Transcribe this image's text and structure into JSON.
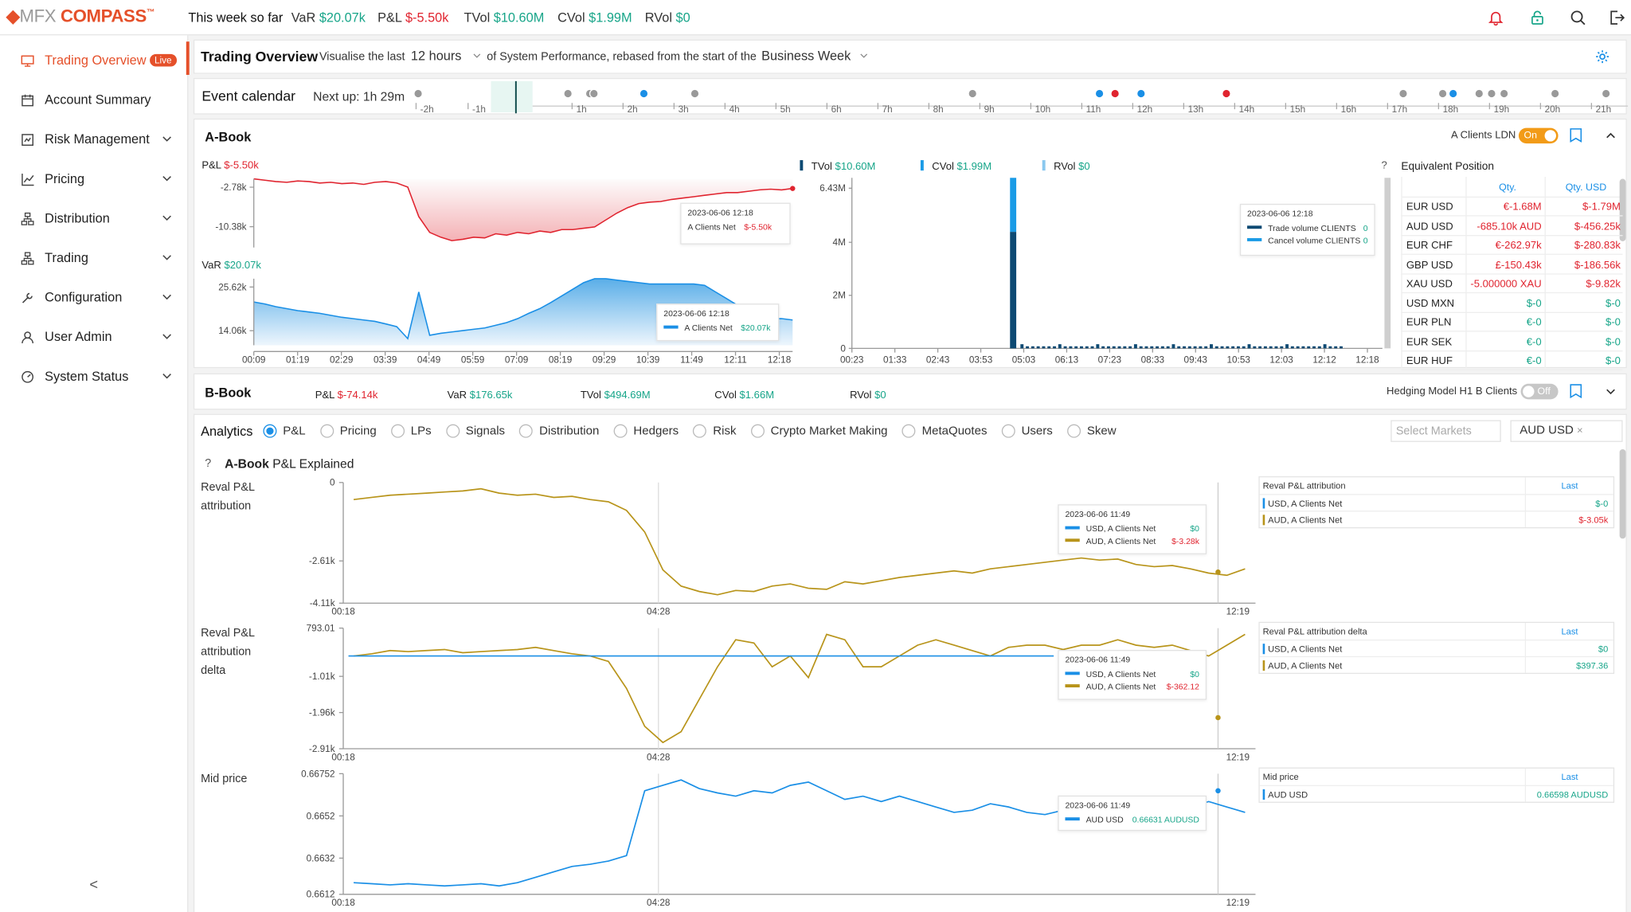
{
  "topbar": {
    "logo_mark": "◆",
    "logo_mfx": "MFX",
    "logo_compass": "COMPASS",
    "logo_tm": "™",
    "week_label": "This week so far",
    "metrics": [
      {
        "key": "VaR",
        "value": "$20.07k",
        "color": "#17a589"
      },
      {
        "key": "P&L",
        "value": "$-5.50k",
        "color": "#e0242f"
      },
      {
        "key": "TVol",
        "value": "$10.60M",
        "color": "#17a589"
      },
      {
        "key": "CVol",
        "value": "$1.99M",
        "color": "#17a589"
      },
      {
        "key": "RVol",
        "value": "$0",
        "color": "#17a589"
      }
    ],
    "icons": [
      "bell-icon",
      "lock-icon",
      "search-icon",
      "logout-icon"
    ]
  },
  "sidebar": {
    "items": [
      {
        "label": "Trading Overview",
        "icon": "monitor-icon",
        "badge": "Live",
        "active": true
      },
      {
        "label": "Account Summary",
        "icon": "calendar-icon"
      },
      {
        "label": "Risk Management",
        "icon": "shield-icon",
        "chevron": true
      },
      {
        "label": "Pricing",
        "icon": "chart-icon",
        "chevron": true
      },
      {
        "label": "Distribution",
        "icon": "network-icon",
        "chevron": true
      },
      {
        "label": "Trading",
        "icon": "network-icon",
        "chevron": true
      },
      {
        "label": "Configuration",
        "icon": "wrench-icon",
        "chevron": true
      },
      {
        "label": "User Admin",
        "icon": "user-icon",
        "chevron": true
      },
      {
        "label": "System Status",
        "icon": "gauge-icon",
        "chevron": true
      }
    ],
    "collapse": "<"
  },
  "overview": {
    "title": "Trading Overview",
    "visualise": "Visualise the last",
    "range": "12 hours",
    "of_text": "of System Performance, rebased from the start of the",
    "rebase": "Business Week"
  },
  "calendar": {
    "title": "Event calendar",
    "next_up": "Next up: 1h 29m",
    "ticks": [
      "-2h",
      "-1h",
      "1h",
      "2h",
      "3h",
      "4h",
      "5h",
      "6h",
      "7h",
      "8h",
      "9h",
      "10h",
      "11h",
      "12h",
      "13h",
      "14h",
      "15h",
      "16h",
      "17h",
      "18h",
      "19h",
      "20h",
      "21h"
    ]
  },
  "abook": {
    "title": "A-Book",
    "account": "A Clients LDN",
    "toggle": "On",
    "pnl_label": "P&L",
    "pnl_value": "$-5.50k",
    "pnl_ticks": [
      "-2.78k",
      "-10.38k"
    ],
    "pnl_tip_date": "2023-06-06 12:18",
    "pnl_tip_series": "A Clients Net",
    "pnl_tip_value": "$-5.50k",
    "var_label": "VaR",
    "var_value": "$20.07k",
    "var_ticks": [
      "25.62k",
      "14.06k"
    ],
    "var_tip_date": "2023-06-06 12:18",
    "var_tip_series": "A Clients Net",
    "var_tip_value": "$20.07k",
    "time_ticks": [
      "00:09",
      "01:19",
      "02:29",
      "03:39",
      "04:49",
      "05:59",
      "07:09",
      "08:19",
      "09:29",
      "10:39",
      "11:49",
      "12:11",
      "12:18"
    ],
    "vol_legend": [
      {
        "label": "TVol",
        "value": "$10.60M",
        "color": "#0d4a73"
      },
      {
        "label": "CVol",
        "value": "$1.99M",
        "color": "#1a9be6"
      },
      {
        "label": "RVol",
        "value": "$0",
        "color": "#8ac8ef"
      }
    ],
    "vol_ticks": [
      "6.43M",
      "4M",
      "2M",
      "0"
    ],
    "vol_time_ticks": [
      "00:23",
      "01:33",
      "02:43",
      "03:53",
      "05:03",
      "06:13",
      "07:23",
      "08:33",
      "09:43",
      "10:53",
      "12:03",
      "12:12",
      "12:18"
    ],
    "vol_tip_date": "2023-06-06 12:18",
    "vol_tip_rows": [
      {
        "label": "Trade volume CLIENTS",
        "value": "0",
        "color": "#0d4a73"
      },
      {
        "label": "Cancel volume CLIENTS",
        "value": "0",
        "color": "#1a9be6"
      }
    ],
    "equiv": {
      "help": "?",
      "title": "Equivalent Position",
      "col_qty": "Qty.",
      "col_usd": "Qty. USD",
      "rows": [
        {
          "sym": "EUR USD",
          "qty": "€-1.68M",
          "usd": "$-1.79M",
          "neg": true
        },
        {
          "sym": "AUD USD",
          "qty": "-685.10k AUD",
          "usd": "$-456.25k",
          "neg": true
        },
        {
          "sym": "EUR CHF",
          "qty": "€-262.97k",
          "usd": "$-280.83k",
          "neg": true
        },
        {
          "sym": "GBP USD",
          "qty": "£-150.43k",
          "usd": "$-186.56k",
          "neg": true
        },
        {
          "sym": "XAU USD",
          "qty": "-5.000000 XAU",
          "usd": "$-9.82k",
          "neg": true
        },
        {
          "sym": "USD MXN",
          "qty": "$-0",
          "usd": "$-0",
          "neg": false
        },
        {
          "sym": "EUR PLN",
          "qty": "€-0",
          "usd": "$-0",
          "neg": false
        },
        {
          "sym": "EUR SEK",
          "qty": "€-0",
          "usd": "$-0",
          "neg": false
        },
        {
          "sym": "EUR HUF",
          "qty": "€-0",
          "usd": "$-0",
          "neg": false
        }
      ]
    }
  },
  "bbook": {
    "title": "B-Book",
    "metrics": [
      {
        "key": "P&L",
        "value": "$-74.14k",
        "color": "#e0242f"
      },
      {
        "key": "VaR",
        "value": "$176.65k",
        "color": "#17a589"
      },
      {
        "key": "TVol",
        "value": "$494.69M",
        "color": "#17a589"
      },
      {
        "key": "CVol",
        "value": "$1.66M",
        "color": "#17a589"
      },
      {
        "key": "RVol",
        "value": "$0",
        "color": "#17a589"
      }
    ],
    "hedge": "Hedging Model H1 B Clients",
    "toggle": "Off"
  },
  "analytics": {
    "title": "Analytics",
    "tabs": [
      "P&L",
      "Pricing",
      "LPs",
      "Signals",
      "Distribution",
      "Hedgers",
      "Risk",
      "Crypto Market Making",
      "MetaQuotes",
      "Users",
      "Skew"
    ],
    "selected": "P&L",
    "markets_placeholder": "Select Markets",
    "market_chip": "AUD USD",
    "chip_close": "×",
    "explained_help": "?",
    "explained_bold": "A-Book",
    "explained_rest": " P&L Explained"
  },
  "charts": [
    {
      "label": [
        "Reval P&L",
        "attribution"
      ],
      "ticks": [
        "0",
        "-2.61k",
        "-4.11k"
      ],
      "x_ticks": [
        "00:18",
        "04:28",
        "12:19"
      ],
      "tip_date": "2023-06-06 11:49",
      "tip_rows": [
        {
          "label": "USD, A Clients Net",
          "value": "$0",
          "color": "#1a8fe6",
          "vcolor": "#17a589"
        },
        {
          "label": "AUD, A Clients Net",
          "value": "$-3.28k",
          "color": "#b8941a",
          "vcolor": "#e0242f"
        }
      ],
      "legend_title": "Reval P&L attribution",
      "legend_col": "Last",
      "legend_rows": [
        {
          "label": "USD, A Clients Net",
          "value": "$-0",
          "color": "#1a8fe6",
          "vcolor": "#17a589"
        },
        {
          "label": "AUD, A Clients Net",
          "value": "$-3.05k",
          "color": "#b8941a",
          "vcolor": "#e0242f"
        }
      ]
    },
    {
      "label": [
        "Reval P&L",
        "attribution",
        "delta"
      ],
      "ticks": [
        "793.01",
        "-1.01k",
        "-1.96k",
        "-2.91k"
      ],
      "x_ticks": [
        "00:18",
        "04:28",
        "12:19"
      ],
      "tip_date": "2023-06-06 11:49",
      "tip_rows": [
        {
          "label": "USD, A Clients Net",
          "value": "$0",
          "color": "#1a8fe6",
          "vcolor": "#17a589"
        },
        {
          "label": "AUD, A Clients Net",
          "value": "$-362.12",
          "color": "#b8941a",
          "vcolor": "#e0242f"
        }
      ],
      "legend_title": "Reval P&L attribution delta",
      "legend_col": "Last",
      "legend_rows": [
        {
          "label": "USD, A Clients Net",
          "value": "$0",
          "color": "#1a8fe6",
          "vcolor": "#17a589"
        },
        {
          "label": "AUD, A Clients Net",
          "value": "$397.36",
          "color": "#b8941a",
          "vcolor": "#17a589"
        }
      ]
    },
    {
      "label": [
        "Mid price"
      ],
      "ticks": [
        "0.66752",
        "0.6652",
        "0.6632",
        "0.6612"
      ],
      "x_ticks": [
        "00:18",
        "04:28",
        "12:19"
      ],
      "tip_date": "2023-06-06 11:49",
      "tip_rows": [
        {
          "label": "AUD USD",
          "value": "0.66631 AUDUSD",
          "color": "#1a8fe6",
          "vcolor": "#17a589"
        }
      ],
      "legend_title": "Mid price",
      "legend_col": "Last",
      "legend_rows": [
        {
          "label": "AUD USD",
          "value": "0.66598 AUDUSD",
          "color": "#1a8fe6",
          "vcolor": "#17a589"
        }
      ]
    }
  ],
  "colors": {
    "brand": "#e5502a",
    "positive": "#17a589",
    "negative": "#e0242f",
    "blue": "#1a8fe6",
    "gold": "#b8941a"
  }
}
